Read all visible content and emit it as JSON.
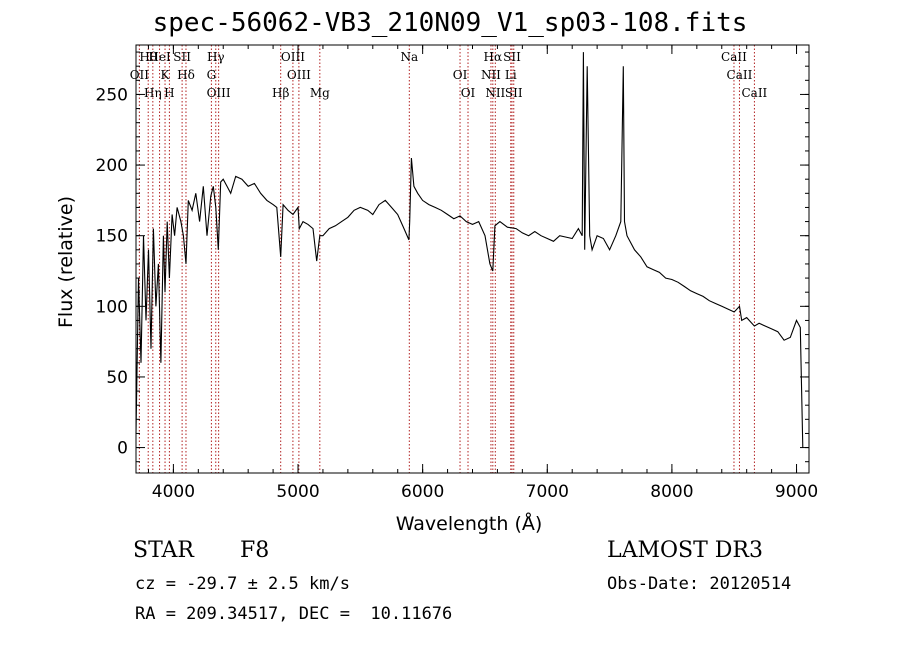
{
  "header": {
    "title": "spec-56062-VB3_210N09_V1_sp03-108.fits"
  },
  "info": {
    "object_class": "STAR",
    "subclass": "F8",
    "survey": "LAMOST DR3",
    "redshift": "cz = -29.7 ± 2.5 km/s",
    "obs_date": "Obs-Date: 20120514",
    "coords": "RA = 209.34517, DEC =  10.11676"
  },
  "chart_data": {
    "type": "line",
    "title": "spec-56062-VB3_210N09_V1_sp03-108.fits",
    "xlabel": "Wavelength (Å)",
    "ylabel": "Flux (relative)",
    "xlim": [
      3700,
      9100
    ],
    "ylim": [
      -18,
      285
    ],
    "xticks": [
      4000,
      5000,
      6000,
      7000,
      8000,
      9000
    ],
    "yticks": [
      0,
      50,
      100,
      150,
      200,
      250
    ],
    "line_color": "#000000",
    "marker_color": "#b22222",
    "series": [
      {
        "name": "flux",
        "x": [
          3700,
          3720,
          3740,
          3760,
          3780,
          3800,
          3820,
          3840,
          3860,
          3880,
          3900,
          3920,
          3933,
          3950,
          3968,
          3990,
          4010,
          4030,
          4060,
          4080,
          4101,
          4120,
          4150,
          4180,
          4210,
          4240,
          4270,
          4300,
          4320,
          4340,
          4360,
          4380,
          4400,
          4430,
          4460,
          4500,
          4550,
          4600,
          4650,
          4700,
          4750,
          4800,
          4830,
          4861,
          4880,
          4920,
          4960,
          5000,
          5010,
          5040,
          5080,
          5120,
          5150,
          5175,
          5200,
          5250,
          5300,
          5350,
          5400,
          5450,
          5500,
          5560,
          5600,
          5650,
          5700,
          5750,
          5800,
          5850,
          5890,
          5896,
          5910,
          5930,
          5960,
          6000,
          6050,
          6100,
          6150,
          6200,
          6250,
          6300,
          6350,
          6400,
          6450,
          6500,
          6540,
          6563,
          6580,
          6620,
          6680,
          6750,
          6800,
          6850,
          6900,
          6950,
          7000,
          7050,
          7100,
          7150,
          7200,
          7250,
          7280,
          7290,
          7300,
          7320,
          7340,
          7360,
          7380,
          7400,
          7450,
          7500,
          7550,
          7590,
          7610,
          7620,
          7640,
          7700,
          7750,
          7800,
          7850,
          7900,
          7950,
          8000,
          8050,
          8100,
          8150,
          8200,
          8250,
          8300,
          8350,
          8400,
          8450,
          8500,
          8542,
          8560,
          8600,
          8662,
          8700,
          8750,
          8800,
          8850,
          8900,
          8950,
          9000,
          9030,
          9050
        ],
        "values": [
          10,
          120,
          60,
          150,
          90,
          140,
          70,
          155,
          100,
          130,
          60,
          150,
          110,
          160,
          120,
          165,
          150,
          170,
          160,
          150,
          130,
          175,
          168,
          180,
          160,
          185,
          150,
          178,
          185,
          170,
          140,
          188,
          190,
          185,
          180,
          192,
          190,
          185,
          187,
          180,
          175,
          172,
          170,
          135,
          172,
          168,
          165,
          170,
          155,
          160,
          158,
          155,
          132,
          150,
          150,
          155,
          157,
          160,
          163,
          168,
          170,
          168,
          165,
          172,
          175,
          170,
          165,
          155,
          147,
          160,
          205,
          185,
          180,
          175,
          172,
          170,
          168,
          165,
          162,
          164,
          160,
          158,
          160,
          150,
          130,
          125,
          157,
          160,
          156,
          155,
          152,
          150,
          153,
          150,
          148,
          146,
          150,
          149,
          148,
          155,
          150,
          280,
          140,
          270,
          150,
          140,
          145,
          150,
          148,
          140,
          150,
          160,
          270,
          160,
          150,
          140,
          135,
          128,
          126,
          124,
          120,
          119,
          117,
          114,
          111,
          109,
          107,
          104,
          102,
          100,
          98,
          96,
          100,
          90,
          92,
          86,
          88,
          86,
          84,
          82,
          76,
          78,
          90,
          85,
          0
        ]
      }
    ],
    "line_markers": [
      {
        "label": "Hθ",
        "wave": 3798
      },
      {
        "label": "OII",
        "wave": 3727
      },
      {
        "label": "Hη",
        "wave": 3835
      },
      {
        "label": "HeI",
        "wave": 3889
      },
      {
        "label": "K",
        "wave": 3933
      },
      {
        "label": "H",
        "wave": 3968
      },
      {
        "label": "SII",
        "wave": 4070
      },
      {
        "label": "Hδ",
        "wave": 4101
      },
      {
        "label": "OIII",
        "wave": 4363
      },
      {
        "label": "Hγ",
        "wave": 4340
      },
      {
        "label": "G",
        "wave": 4305
      },
      {
        "label": "Hβ",
        "wave": 4861
      },
      {
        "label": "OIII",
        "wave": 4959
      },
      {
        "label": "OIII",
        "wave": 5007
      },
      {
        "label": "Mg",
        "wave": 5175
      },
      {
        "label": "Na",
        "wave": 5893
      },
      {
        "label": "OI",
        "wave": 6300
      },
      {
        "label": "OI",
        "wave": 6364
      },
      {
        "label": "Hα",
        "wave": 6563
      },
      {
        "label": "NII",
        "wave": 6548
      },
      {
        "label": "NII",
        "wave": 6583
      },
      {
        "label": "SII",
        "wave": 6717
      },
      {
        "label": "Li",
        "wave": 6707
      },
      {
        "label": "SII",
        "wave": 6731
      },
      {
        "label": "CaII",
        "wave": 8498
      },
      {
        "label": "CaII",
        "wave": 8542
      },
      {
        "label": "CaII",
        "wave": 8662
      }
    ]
  }
}
